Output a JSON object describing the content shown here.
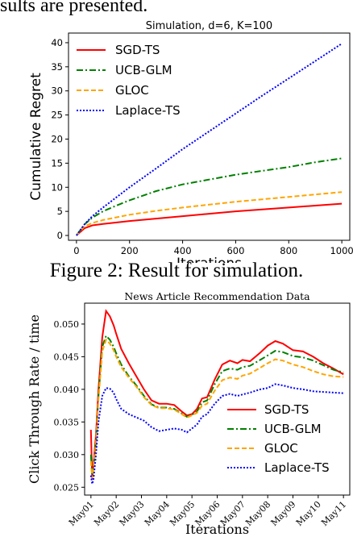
{
  "page": {
    "top_fragment": "sults are presented.",
    "caption": "Figure 2: Result for simulation."
  },
  "chart_data": [
    {
      "type": "line",
      "title": "Simulation, d=6, K=100",
      "xlabel": "Iterations",
      "ylabel": "Cumulative Regret",
      "xlim": [
        -30,
        1030
      ],
      "ylim": [
        -1,
        42
      ],
      "xticks": [
        0,
        200,
        400,
        600,
        800,
        1000
      ],
      "yticks": [
        0,
        5,
        10,
        15,
        20,
        25,
        30,
        35,
        40
      ],
      "legend": "top-left",
      "series": [
        {
          "name": "SGD-TS",
          "color": "#ff0000",
          "dash": "",
          "x": [
            0,
            30,
            60,
            100,
            200,
            300,
            400,
            500,
            600,
            700,
            800,
            900,
            1000
          ],
          "y": [
            0,
            1.5,
            2.1,
            2.4,
            3.0,
            3.5,
            4.0,
            4.5,
            5.0,
            5.4,
            5.8,
            6.2,
            6.6
          ]
        },
        {
          "name": "UCB-GLM",
          "color": "#008000",
          "dash": "8 3 2 3",
          "x": [
            0,
            30,
            60,
            100,
            150,
            200,
            300,
            400,
            500,
            600,
            700,
            800,
            900,
            1000
          ],
          "y": [
            0,
            2.3,
            3.7,
            5.0,
            6.2,
            7.3,
            9.2,
            10.6,
            11.6,
            12.6,
            13.4,
            14.2,
            15.2,
            16.0
          ]
        },
        {
          "name": "GLOC",
          "color": "#ffa500",
          "dash": "6 3",
          "x": [
            0,
            30,
            60,
            100,
            200,
            300,
            400,
            500,
            600,
            700,
            800,
            900,
            1000
          ],
          "y": [
            0,
            1.9,
            2.6,
            3.2,
            4.3,
            5.1,
            5.8,
            6.4,
            7.0,
            7.5,
            8.0,
            8.5,
            9.0
          ]
        },
        {
          "name": "Laplace-TS",
          "color": "#0000ff",
          "dash": "2 2",
          "x": [
            0,
            30,
            60,
            100,
            200,
            300,
            400,
            500,
            600,
            700,
            800,
            900,
            1000
          ],
          "y": [
            0,
            2.3,
            4.0,
            5.8,
            10.0,
            13.9,
            17.9,
            21.6,
            25.3,
            29.0,
            32.6,
            36.2,
            39.8
          ]
        }
      ]
    },
    {
      "type": "line",
      "title": "News Article Recommendation Data",
      "xlabel": "Iterations",
      "ylabel": "Click Through Rate / time",
      "ylim": [
        0.0238,
        0.0532
      ],
      "yticks": [
        0.025,
        0.03,
        0.035,
        0.04,
        0.045,
        0.05
      ],
      "ytick_labels": [
        "0.025",
        "0.030",
        "0.035",
        "0.040",
        "0.045",
        "0.050"
      ],
      "categories": [
        "May01",
        "May02",
        "May03",
        "May04",
        "May05",
        "May06",
        "May07",
        "May08",
        "May09",
        "May10",
        "May11"
      ],
      "legend": "lower-right",
      "series": [
        {
          "name": "SGD-TS",
          "color": "#ff0000",
          "dash": "",
          "x": [
            0,
            0.05,
            0.1,
            0.2,
            0.3,
            0.45,
            0.6,
            0.75,
            0.9,
            1.0,
            1.2,
            1.5,
            1.8,
            2.1,
            2.4,
            2.7,
            3.0,
            3.3,
            3.6,
            3.8,
            4.0,
            4.2,
            4.4,
            4.6,
            4.9,
            5.2,
            5.5,
            5.8,
            6.0,
            6.3,
            6.7,
            7.0,
            7.3,
            7.6,
            8.0,
            8.4,
            8.8,
            9.2,
            9.6,
            10.0
          ],
          "y": [
            0.0338,
            0.0262,
            0.0285,
            0.033,
            0.04,
            0.048,
            0.052,
            0.0512,
            0.0498,
            0.0485,
            0.0462,
            0.044,
            0.042,
            0.04,
            0.0383,
            0.0378,
            0.0378,
            0.0376,
            0.0366,
            0.036,
            0.0362,
            0.037,
            0.0386,
            0.0388,
            0.0415,
            0.0438,
            0.0444,
            0.044,
            0.0445,
            0.0443,
            0.0456,
            0.0467,
            0.0474,
            0.047,
            0.046,
            0.0458,
            0.045,
            0.044,
            0.0432,
            0.0423
          ]
        },
        {
          "name": "UCB-GLM",
          "color": "#008000",
          "dash": "8 3 2 3",
          "x": [
            0,
            0.05,
            0.1,
            0.2,
            0.3,
            0.45,
            0.6,
            0.75,
            0.9,
            1.0,
            1.2,
            1.5,
            1.8,
            2.1,
            2.4,
            2.7,
            3.0,
            3.3,
            3.6,
            3.8,
            4.0,
            4.2,
            4.4,
            4.6,
            4.9,
            5.2,
            5.5,
            5.8,
            6.0,
            6.3,
            6.7,
            7.0,
            7.3,
            7.6,
            8.0,
            8.4,
            8.8,
            9.2,
            9.6,
            10.0
          ],
          "y": [
            0.03,
            0.0265,
            0.0282,
            0.032,
            0.039,
            0.0465,
            0.0482,
            0.0476,
            0.0465,
            0.0455,
            0.0438,
            0.042,
            0.0406,
            0.039,
            0.0377,
            0.0372,
            0.0372,
            0.037,
            0.0363,
            0.0358,
            0.0361,
            0.0366,
            0.038,
            0.0383,
            0.0408,
            0.0428,
            0.0432,
            0.043,
            0.0434,
            0.0436,
            0.0445,
            0.0452,
            0.0459,
            0.0457,
            0.0451,
            0.0449,
            0.0444,
            0.0437,
            0.043,
            0.0426
          ]
        },
        {
          "name": "GLOC",
          "color": "#ffa500",
          "dash": "6 3",
          "x": [
            0,
            0.05,
            0.1,
            0.2,
            0.3,
            0.45,
            0.6,
            0.75,
            0.9,
            1.0,
            1.2,
            1.5,
            1.8,
            2.1,
            2.4,
            2.7,
            3.0,
            3.3,
            3.6,
            3.8,
            4.0,
            4.2,
            4.4,
            4.6,
            4.9,
            5.2,
            5.5,
            5.8,
            6.0,
            6.3,
            6.7,
            7.0,
            7.3,
            7.6,
            8.0,
            8.4,
            8.8,
            9.2,
            9.6,
            10.0
          ],
          "y": [
            0.029,
            0.0264,
            0.0278,
            0.0318,
            0.0385,
            0.0458,
            0.0476,
            0.047,
            0.046,
            0.045,
            0.0434,
            0.0418,
            0.0404,
            0.0388,
            0.0376,
            0.0371,
            0.0371,
            0.0369,
            0.0362,
            0.0357,
            0.036,
            0.0364,
            0.0375,
            0.0378,
            0.0398,
            0.0414,
            0.0418,
            0.0416,
            0.0421,
            0.0424,
            0.0433,
            0.044,
            0.0446,
            0.0444,
            0.0438,
            0.0434,
            0.0428,
            0.0423,
            0.042,
            0.0419
          ]
        },
        {
          "name": "Laplace-TS",
          "color": "#0000ff",
          "dash": "2 2",
          "x": [
            0,
            0.05,
            0.1,
            0.2,
            0.3,
            0.45,
            0.6,
            0.75,
            0.9,
            1.0,
            1.2,
            1.5,
            1.8,
            2.1,
            2.4,
            2.7,
            3.0,
            3.3,
            3.6,
            3.8,
            4.0,
            4.2,
            4.4,
            4.6,
            4.9,
            5.2,
            5.5,
            5.8,
            6.0,
            6.3,
            6.7,
            7.0,
            7.3,
            7.6,
            8.0,
            8.4,
            8.8,
            9.2,
            9.6,
            10.0
          ],
          "y": [
            0.0268,
            0.0255,
            0.0262,
            0.03,
            0.035,
            0.039,
            0.0402,
            0.0401,
            0.0395,
            0.0385,
            0.037,
            0.0362,
            0.0357,
            0.0352,
            0.0342,
            0.0336,
            0.0338,
            0.034,
            0.0338,
            0.0334,
            0.034,
            0.0346,
            0.0358,
            0.0362,
            0.0378,
            0.039,
            0.0393,
            0.039,
            0.0392,
            0.0395,
            0.04,
            0.0402,
            0.0408,
            0.0406,
            0.0402,
            0.04,
            0.0397,
            0.0396,
            0.0395,
            0.0394
          ]
        }
      ]
    }
  ]
}
